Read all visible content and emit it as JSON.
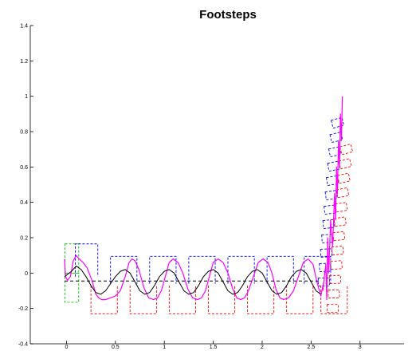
{
  "chart_data": {
    "type": "line",
    "title": "Footsteps",
    "xlabel": "",
    "ylabel": "",
    "xlim": [
      -0.37,
      3.45
    ],
    "ylim": [
      -0.4,
      1.4
    ],
    "xticks": [
      0,
      0.5,
      1,
      1.5,
      2,
      2.5,
      3
    ],
    "xtick_labels": [
      "0",
      "0.5",
      "1",
      "1.5",
      "2",
      "2.5",
      "3"
    ],
    "yticks": [
      -0.4,
      -0.2,
      0,
      0.2,
      0.4,
      0.6,
      0.8,
      1,
      1.2,
      1.4
    ],
    "ytick_labels": [
      "-0.4",
      "-0.2",
      "0",
      "0.2",
      "0.4",
      "0.6",
      "0.8",
      "1",
      "1.2",
      "1.4"
    ],
    "grid": false,
    "colors": {
      "left_foot": "#0000ff",
      "right_foot": "#ff0000",
      "initial_foot": "#00cc00",
      "zmp_trajectory": "#ff00ff",
      "com_trajectory": "#000000",
      "reference_path": "#000000"
    },
    "footsteps": {
      "initial": [
        {
          "x": -0.015,
          "y": 0.165,
          "x2": 0.125,
          "y2": 0.0
        },
        {
          "x": -0.015,
          "y": 0.0,
          "x2": 0.125,
          "y2": -0.165
        }
      ],
      "left": [
        {
          "x0": 0.09,
          "x1": 0.32,
          "y0": -0.02,
          "y1": 0.165
        },
        {
          "x0": 0.45,
          "x1": 0.72,
          "y0": -0.06,
          "y1": 0.095
        },
        {
          "x0": 0.85,
          "x1": 1.12,
          "y0": -0.06,
          "y1": 0.095
        },
        {
          "x0": 1.25,
          "x1": 1.52,
          "y0": -0.06,
          "y1": 0.095
        },
        {
          "x0": 1.65,
          "x1": 1.92,
          "y0": -0.06,
          "y1": 0.095
        },
        {
          "x0": 2.05,
          "x1": 2.32,
          "y0": -0.06,
          "y1": 0.095
        },
        {
          "x0": 2.43,
          "x1": 2.7,
          "y0": -0.06,
          "y1": 0.095
        }
      ],
      "right": [
        {
          "x0": 0.25,
          "x1": 0.52,
          "y0": -0.23,
          "y1": -0.07
        },
        {
          "x0": 0.65,
          "x1": 0.92,
          "y0": -0.23,
          "y1": -0.07
        },
        {
          "x0": 1.05,
          "x1": 1.32,
          "y0": -0.23,
          "y1": -0.07
        },
        {
          "x0": 1.45,
          "x1": 1.72,
          "y0": -0.23,
          "y1": -0.07
        },
        {
          "x0": 1.85,
          "x1": 2.12,
          "y0": -0.23,
          "y1": -0.07
        },
        {
          "x0": 2.25,
          "x1": 2.52,
          "y0": -0.23,
          "y1": -0.07
        },
        {
          "x0": 2.6,
          "x1": 2.87,
          "y0": -0.23,
          "y1": -0.07
        }
      ]
    },
    "turn_footsteps": {
      "left": {
        "x_start": 2.63,
        "x_end": 2.77,
        "y_start": -0.05,
        "y_end": 0.85,
        "lean": 0.26,
        "count": 12
      },
      "right": {
        "x_start": 2.72,
        "x_end": 2.86,
        "y_start": -0.2,
        "y_end": 0.7,
        "lean": 0.26,
        "count": 12
      }
    },
    "series": [
      {
        "color": "#ff00ff",
        "x": [
          -0.02,
          -0.01,
          0.01,
          0.04,
          0.07,
          0.1,
          0.13,
          0.17,
          0.21,
          0.26,
          0.3,
          0.33,
          0.36,
          0.4,
          0.45,
          0.5,
          0.55,
          0.6,
          0.64,
          0.67,
          0.7,
          0.74,
          0.79,
          0.84,
          0.89,
          0.93,
          0.97,
          1.01,
          1.05,
          1.09,
          1.14,
          1.19,
          1.24,
          1.29,
          1.34,
          1.38,
          1.42,
          1.46,
          1.5,
          1.55,
          1.6,
          1.65,
          1.7,
          1.74,
          1.78,
          1.82,
          1.86,
          1.91,
          1.96,
          2.01,
          2.06,
          2.1,
          2.14,
          2.18,
          2.22,
          2.27,
          2.32,
          2.37,
          2.42,
          2.47,
          2.52,
          2.56,
          2.6,
          2.63
        ],
        "y": [
          0.08,
          -0.02,
          -0.04,
          -0.02,
          0.07,
          0.1,
          0.08,
          0.06,
          0.03,
          -0.04,
          -0.12,
          -0.14,
          -0.15,
          -0.15,
          -0.14,
          -0.13,
          -0.1,
          -0.02,
          0.06,
          0.08,
          0.07,
          0.02,
          -0.08,
          -0.14,
          -0.15,
          -0.14,
          -0.1,
          -0.02,
          0.06,
          0.08,
          0.06,
          0.0,
          -0.09,
          -0.14,
          -0.15,
          -0.14,
          -0.1,
          -0.02,
          0.06,
          0.08,
          0.06,
          0.0,
          -0.09,
          -0.14,
          -0.15,
          -0.14,
          -0.1,
          -0.02,
          0.06,
          0.08,
          0.06,
          0.0,
          -0.09,
          -0.14,
          -0.15,
          -0.14,
          -0.1,
          -0.02,
          0.06,
          0.08,
          0.05,
          -0.05,
          -0.13,
          -0.05
        ]
      },
      {
        "color": "#000000",
        "x": [
          -0.02,
          0.05,
          0.1,
          0.15,
          0.2,
          0.25,
          0.3,
          0.35,
          0.4,
          0.45,
          0.5,
          0.55,
          0.6,
          0.65,
          0.7,
          0.75,
          0.8,
          0.85,
          0.9,
          0.95,
          1.0,
          1.05,
          1.1,
          1.15,
          1.2,
          1.25,
          1.3,
          1.35,
          1.4,
          1.45,
          1.5,
          1.55,
          1.6,
          1.65,
          1.7,
          1.75,
          1.8,
          1.85,
          1.9,
          1.95,
          2.0,
          2.05,
          2.1,
          2.15,
          2.2,
          2.25,
          2.3,
          2.35,
          2.4,
          2.45,
          2.5,
          2.55,
          2.6
        ],
        "y": [
          -0.02,
          0.01,
          0.04,
          0.02,
          -0.02,
          -0.07,
          -0.11,
          -0.12,
          -0.1,
          -0.06,
          -0.02,
          0.01,
          0.02,
          0.0,
          -0.05,
          -0.1,
          -0.12,
          -0.11,
          -0.07,
          -0.02,
          0.01,
          0.02,
          0.0,
          -0.05,
          -0.1,
          -0.12,
          -0.11,
          -0.07,
          -0.02,
          0.01,
          0.02,
          0.0,
          -0.05,
          -0.1,
          -0.12,
          -0.11,
          -0.07,
          -0.02,
          0.01,
          0.02,
          0.0,
          -0.05,
          -0.1,
          -0.12,
          -0.11,
          -0.07,
          -0.02,
          0.01,
          0.02,
          0.0,
          -0.05,
          -0.1,
          -0.12
        ]
      },
      {
        "color": "#000000",
        "dashed": true,
        "x": [
          -0.02,
          2.6
        ],
        "y": [
          -0.045,
          -0.045
        ]
      },
      {
        "color": "#ff00ff",
        "x": [
          2.62,
          2.65,
          2.66,
          2.67,
          2.68,
          2.7,
          2.72,
          2.74,
          2.75,
          2.76,
          2.77,
          2.78,
          2.79,
          2.8,
          2.81,
          2.82
        ],
        "y": [
          -0.1,
          0.05,
          -0.15,
          0.2,
          0.0,
          0.3,
          0.15,
          0.45,
          0.3,
          0.6,
          0.45,
          0.75,
          0.6,
          0.9,
          0.75,
          1.0
        ]
      }
    ]
  }
}
